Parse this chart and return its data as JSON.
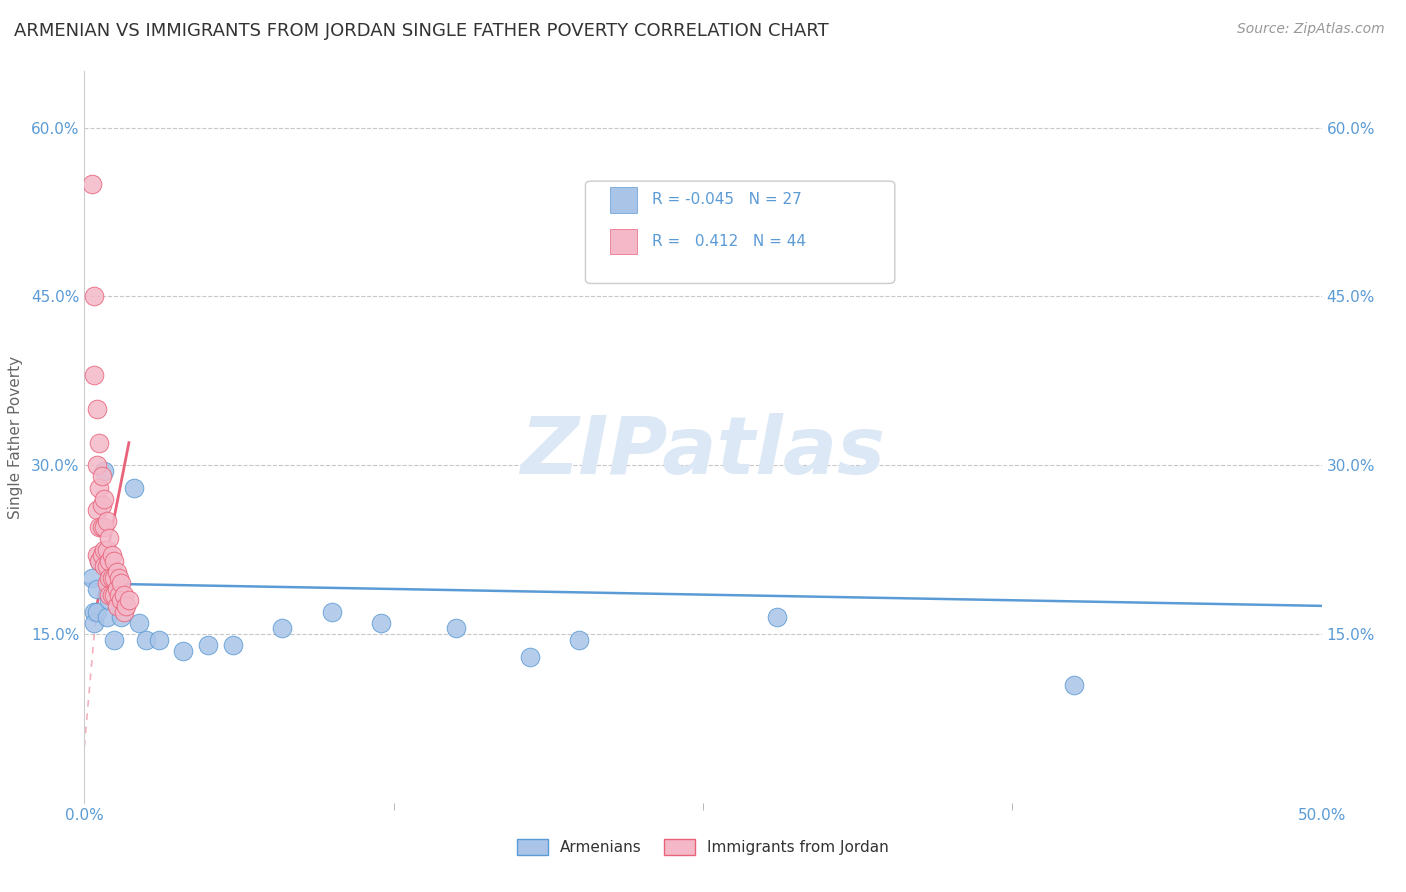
{
  "title": "ARMENIAN VS IMMIGRANTS FROM JORDAN SINGLE FATHER POVERTY CORRELATION CHART",
  "source": "Source: ZipAtlas.com",
  "ylabel": "Single Father Poverty",
  "background_color": "#ffffff",
  "watermark": "ZIPatlas",
  "legend": {
    "armenian": {
      "label": "Armenians",
      "color": "#aac4e8",
      "R": "-0.045",
      "N": "27"
    },
    "jordan": {
      "label": "Immigrants from Jordan",
      "color": "#f4b8c8",
      "R": "0.412",
      "N": "44"
    }
  },
  "armenian_x": [
    0.003,
    0.004,
    0.004,
    0.005,
    0.005,
    0.006,
    0.007,
    0.008,
    0.009,
    0.01,
    0.012,
    0.015,
    0.02,
    0.022,
    0.025,
    0.03,
    0.04,
    0.05,
    0.06,
    0.08,
    0.1,
    0.12,
    0.15,
    0.18,
    0.2,
    0.28,
    0.4
  ],
  "armenian_y": [
    0.2,
    0.17,
    0.16,
    0.19,
    0.17,
    0.215,
    0.245,
    0.295,
    0.165,
    0.18,
    0.145,
    0.165,
    0.28,
    0.16,
    0.145,
    0.145,
    0.135,
    0.14,
    0.14,
    0.155,
    0.17,
    0.16,
    0.155,
    0.13,
    0.145,
    0.165,
    0.105
  ],
  "jordan_x": [
    0.003,
    0.004,
    0.004,
    0.005,
    0.005,
    0.005,
    0.005,
    0.006,
    0.006,
    0.006,
    0.006,
    0.007,
    0.007,
    0.007,
    0.007,
    0.008,
    0.008,
    0.008,
    0.008,
    0.009,
    0.009,
    0.009,
    0.009,
    0.01,
    0.01,
    0.01,
    0.01,
    0.011,
    0.011,
    0.011,
    0.012,
    0.012,
    0.012,
    0.013,
    0.013,
    0.013,
    0.014,
    0.014,
    0.015,
    0.015,
    0.016,
    0.016,
    0.017,
    0.018
  ],
  "jordan_y": [
    0.55,
    0.45,
    0.38,
    0.35,
    0.3,
    0.26,
    0.22,
    0.32,
    0.28,
    0.245,
    0.215,
    0.29,
    0.265,
    0.245,
    0.22,
    0.27,
    0.245,
    0.225,
    0.21,
    0.25,
    0.225,
    0.21,
    0.195,
    0.235,
    0.215,
    0.2,
    0.185,
    0.22,
    0.2,
    0.185,
    0.215,
    0.2,
    0.185,
    0.205,
    0.19,
    0.175,
    0.2,
    0.185,
    0.195,
    0.18,
    0.185,
    0.17,
    0.175,
    0.18
  ],
  "xlim": [
    0.0,
    0.5
  ],
  "ylim": [
    0.0,
    0.65
  ],
  "yticks": [
    0.15,
    0.3,
    0.45,
    0.6
  ],
  "ytick_labels": [
    "15.0%",
    "30.0%",
    "45.0%",
    "60.0%"
  ],
  "xticks": [
    0.0,
    0.5
  ],
  "xtick_labels": [
    "0.0%",
    "50.0%"
  ],
  "line_color_armenian": "#5b9bd5",
  "line_color_jordan": "#e8637a",
  "dot_color_armenian": "#aac4e8",
  "dot_color_jordan": "#f4b8c8",
  "dot_edge_armenian": "#5b9bd5",
  "dot_edge_jordan": "#e8637a",
  "grid_color": "#c8c8c8",
  "title_fontsize": 13,
  "source_fontsize": 10,
  "ylabel_fontsize": 11,
  "watermark_color": "#dce8f5",
  "watermark_fontsize": 58,
  "tick_color": "#5b9bd5"
}
